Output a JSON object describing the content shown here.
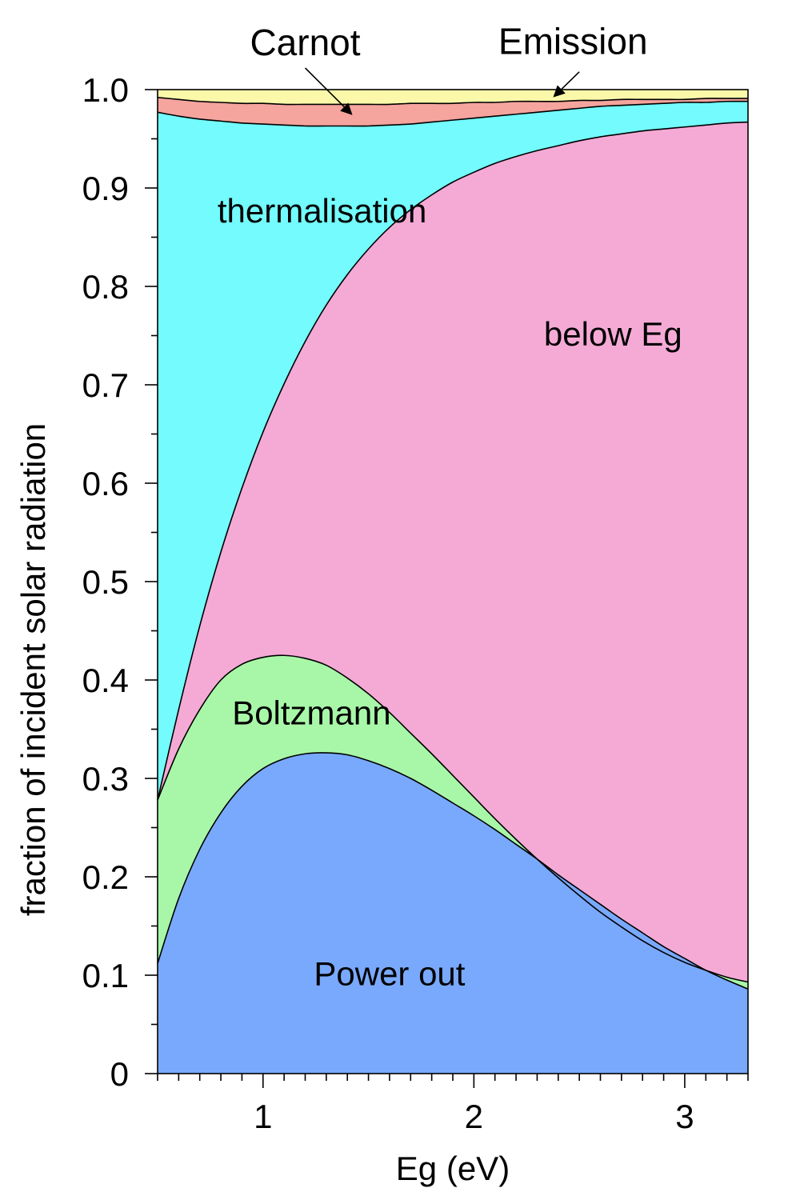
{
  "chart_data": {
    "type": "area",
    "stacked": true,
    "title": "",
    "xlabel": "Eg (eV)",
    "ylabel": "fraction of incident solar radiation",
    "xlim": [
      0.5,
      3.3
    ],
    "ylim": [
      0,
      1.0
    ],
    "x_ticks": [
      1,
      2,
      3
    ],
    "x_tick_labels": [
      "1",
      "2",
      "3"
    ],
    "x_minor_step": 0.1,
    "y_ticks": [
      0,
      0.1,
      0.2,
      0.3,
      0.4,
      0.5,
      0.6,
      0.7,
      0.8,
      0.9,
      1.0
    ],
    "y_tick_labels": [
      "0",
      "0.1",
      "0.2",
      "0.3",
      "0.4",
      "0.5",
      "0.6",
      "0.7",
      "0.8",
      "0.9",
      "1.0"
    ],
    "y_minor_step": 0.05,
    "grid": false,
    "x": [
      0.5,
      0.6,
      0.7,
      0.8,
      0.9,
      1.0,
      1.1,
      1.2,
      1.3,
      1.4,
      1.5,
      1.6,
      1.7,
      1.8,
      1.9,
      2.0,
      2.1,
      2.2,
      2.3,
      2.4,
      2.5,
      2.6,
      2.7,
      2.8,
      2.9,
      3.0,
      3.1,
      3.2,
      3.3
    ],
    "cumulative_boundaries": [
      {
        "name": "Power out",
        "color": "#79a9fc",
        "values": [
          0.112,
          0.178,
          0.228,
          0.265,
          0.292,
          0.31,
          0.32,
          0.325,
          0.326,
          0.324,
          0.318,
          0.31,
          0.3,
          0.288,
          0.275,
          0.262,
          0.248,
          0.233,
          0.218,
          0.202,
          0.187,
          0.172,
          0.157,
          0.143,
          0.129,
          0.117,
          0.105,
          0.095,
          0.086
        ]
      },
      {
        "name": "Boltzmann",
        "color": "#a8f7a8",
        "values": [
          0.278,
          0.33,
          0.37,
          0.4,
          0.416,
          0.423,
          0.425,
          0.422,
          0.415,
          0.402,
          0.386,
          0.367,
          0.346,
          0.325,
          0.303,
          0.281,
          0.259,
          0.238,
          0.218,
          0.199,
          0.181,
          0.164,
          0.149,
          0.135,
          0.123,
          0.113,
          0.105,
          0.098,
          0.093
        ]
      },
      {
        "name": "below Eg",
        "color": "#f5aad6",
        "values": [
          0.278,
          0.37,
          0.455,
          0.53,
          0.595,
          0.652,
          0.701,
          0.744,
          0.781,
          0.812,
          0.838,
          0.86,
          0.878,
          0.893,
          0.906,
          0.916,
          0.925,
          0.932,
          0.938,
          0.943,
          0.948,
          0.952,
          0.955,
          0.958,
          0.96,
          0.962,
          0.964,
          0.966,
          0.967
        ]
      },
      {
        "name": "thermalisation",
        "color": "#73fbfd",
        "values": [
          0.977,
          0.973,
          0.97,
          0.968,
          0.966,
          0.965,
          0.964,
          0.963,
          0.963,
          0.963,
          0.963,
          0.964,
          0.965,
          0.967,
          0.969,
          0.971,
          0.973,
          0.975,
          0.977,
          0.979,
          0.981,
          0.983,
          0.984,
          0.985,
          0.986,
          0.987,
          0.987,
          0.988,
          0.988
        ]
      },
      {
        "name": "Carnot",
        "color": "#f5a49e",
        "values": [
          0.992,
          0.99,
          0.988,
          0.987,
          0.986,
          0.986,
          0.985,
          0.985,
          0.985,
          0.985,
          0.985,
          0.985,
          0.986,
          0.986,
          0.986,
          0.987,
          0.987,
          0.988,
          0.988,
          0.988,
          0.989,
          0.989,
          0.99,
          0.99,
          0.99,
          0.99,
          0.991,
          0.991,
          0.991
        ]
      },
      {
        "name": "Emission",
        "color": "#fbf9a9",
        "values": [
          1.0,
          1.0,
          1.0,
          1.0,
          1.0,
          1.0,
          1.0,
          1.0,
          1.0,
          1.0,
          1.0,
          1.0,
          1.0,
          1.0,
          1.0,
          1.0,
          1.0,
          1.0,
          1.0,
          1.0,
          1.0,
          1.0,
          1.0,
          1.0,
          1.0,
          1.0,
          1.0,
          1.0,
          1.0
        ]
      }
    ],
    "region_labels": [
      {
        "text": "Power out",
        "x": 1.6,
        "y": 0.09
      },
      {
        "text": "Boltzmann",
        "x": 1.23,
        "y": 0.355
      },
      {
        "text": "below Eg",
        "x": 2.66,
        "y": 0.74
      },
      {
        "text": "thermalisation",
        "x": 1.28,
        "y": 0.865
      }
    ],
    "annotations": [
      {
        "text": "Carnot",
        "text_x": 1.2,
        "text_y": 1.035,
        "arrow_from": [
          1.2,
          1.022
        ],
        "arrow_to": [
          1.42,
          0.975
        ]
      },
      {
        "text": "Emission",
        "text_x": 2.47,
        "text_y": 1.036,
        "arrow_from": [
          2.5,
          1.018
        ],
        "arrow_to": [
          2.38,
          0.993
        ]
      }
    ]
  }
}
